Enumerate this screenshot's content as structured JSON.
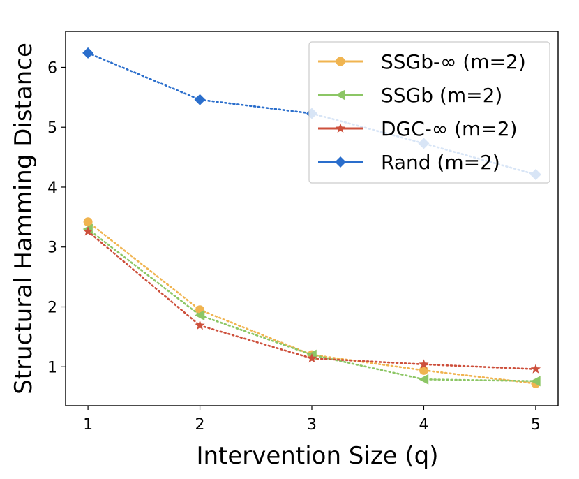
{
  "chart_data": {
    "type": "line",
    "title": "",
    "xlabel": "Intervention Size (q)",
    "ylabel": "Structural Hamming Distance",
    "x": [
      1,
      2,
      3,
      4,
      5
    ],
    "xticks": [
      "1",
      "2",
      "3",
      "4",
      "5"
    ],
    "yticks": [
      "1",
      "2",
      "3",
      "4",
      "5",
      "6"
    ],
    "xlim": [
      0.8,
      5.2
    ],
    "ylim": [
      0.35,
      6.6
    ],
    "grid": false,
    "legend_position": "top-right",
    "series": [
      {
        "name": "SSGb-∞ (m=2)",
        "color": "#f0b450",
        "marker": "circle",
        "values": [
          3.42,
          1.95,
          1.2,
          0.94,
          0.72
        ]
      },
      {
        "name": "SSGb (m=2)",
        "color": "#8cc665",
        "marker": "triangle-left",
        "values": [
          3.3,
          1.86,
          1.2,
          0.79,
          0.76
        ]
      },
      {
        "name": "DGC-∞ (m=2)",
        "color": "#cd503c",
        "marker": "star",
        "values": [
          3.26,
          1.69,
          1.14,
          1.04,
          0.96
        ]
      },
      {
        "name": "Rand (m=2)",
        "color": "#2a6ecc",
        "marker": "diamond",
        "values": [
          6.24,
          5.46,
          5.23,
          4.73,
          4.21
        ]
      }
    ]
  }
}
